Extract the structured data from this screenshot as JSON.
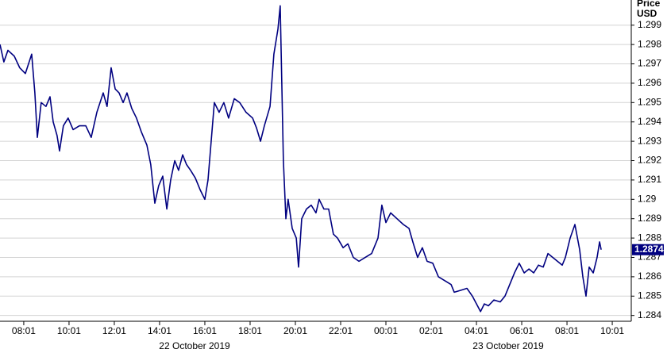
{
  "chart_data": {
    "type": "line",
    "ylabel": "Price",
    "yunit": "USD",
    "date_labels": [
      "22 October 2019",
      "23 October 2019"
    ],
    "last_value": 1.2874,
    "xlim": [
      -1.05,
      26.84
    ],
    "xticks": [
      {
        "value": 0,
        "label": "08:01"
      },
      {
        "value": 2,
        "label": "10:01"
      },
      {
        "value": 4,
        "label": "12:01"
      },
      {
        "value": 6,
        "label": "14:01"
      },
      {
        "value": 8,
        "label": "16:01"
      },
      {
        "value": 10,
        "label": "18:01"
      },
      {
        "value": 12,
        "label": "20:01"
      },
      {
        "value": 14,
        "label": "22:01"
      },
      {
        "value": 16,
        "label": "00:01"
      },
      {
        "value": 18,
        "label": "02:01"
      },
      {
        "value": 20,
        "label": "04:01"
      },
      {
        "value": 22,
        "label": "06:01"
      },
      {
        "value": 24,
        "label": "08:01"
      },
      {
        "value": 26,
        "label": "10:01"
      }
    ],
    "ylim": [
      1.2837,
      1.3003
    ],
    "yticks": [
      1.284,
      1.285,
      1.286,
      1.287,
      1.288,
      1.289,
      1.29,
      1.291,
      1.292,
      1.293,
      1.294,
      1.295,
      1.296,
      1.297,
      1.298,
      1.299
    ],
    "grid": true,
    "series": [
      {
        "color": "#000080",
        "x": [
          -1.05,
          -0.88,
          -0.7,
          -0.42,
          -0.18,
          0.07,
          0.35,
          0.49,
          0.6,
          0.77,
          0.98,
          1.16,
          1.3,
          1.47,
          1.58,
          1.75,
          1.96,
          2.18,
          2.46,
          2.74,
          2.98,
          3.23,
          3.51,
          3.68,
          3.86,
          4.04,
          4.21,
          4.39,
          4.56,
          4.77,
          4.98,
          5.19,
          5.44,
          5.61,
          5.79,
          5.96,
          6.14,
          6.32,
          6.49,
          6.67,
          6.84,
          7.02,
          7.19,
          7.37,
          7.58,
          7.79,
          8.0,
          8.14,
          8.28,
          8.42,
          8.63,
          8.84,
          9.05,
          9.3,
          9.54,
          9.82,
          10.11,
          10.28,
          10.46,
          10.63,
          10.88,
          11.05,
          11.23,
          11.33,
          11.4,
          11.47,
          11.58,
          11.68,
          11.86,
          12.04,
          12.14,
          12.28,
          12.49,
          12.7,
          12.91,
          13.05,
          13.26,
          13.47,
          13.68,
          13.86,
          14.11,
          14.32,
          14.56,
          14.81,
          15.09,
          15.37,
          15.65,
          15.82,
          16.0,
          16.21,
          16.49,
          16.77,
          17.02,
          17.19,
          17.4,
          17.61,
          17.82,
          18.07,
          18.32,
          18.6,
          18.88,
          19.02,
          19.3,
          19.58,
          19.82,
          20.0,
          20.18,
          20.35,
          20.53,
          20.77,
          21.05,
          21.26,
          21.47,
          21.68,
          21.89,
          22.11,
          22.32,
          22.53,
          22.74,
          22.95,
          23.16,
          23.37,
          23.58,
          23.79,
          23.93,
          24.14,
          24.35,
          24.56,
          24.7,
          24.84,
          24.98,
          25.16,
          25.33,
          25.44,
          25.51
        ],
        "values": [
          1.298,
          1.2971,
          1.2977,
          1.2974,
          1.2968,
          1.2965,
          1.2975,
          1.2955,
          1.2932,
          1.295,
          1.2948,
          1.2953,
          1.294,
          1.2933,
          1.2925,
          1.2938,
          1.2942,
          1.2936,
          1.2938,
          1.2938,
          1.2932,
          1.2945,
          1.2955,
          1.2948,
          1.2968,
          1.2957,
          1.2955,
          1.295,
          1.2955,
          1.2947,
          1.2942,
          1.2935,
          1.2928,
          1.2918,
          1.2898,
          1.2907,
          1.2912,
          1.2895,
          1.291,
          1.292,
          1.2915,
          1.2923,
          1.2918,
          1.2915,
          1.2911,
          1.2905,
          1.29,
          1.291,
          1.293,
          1.295,
          1.2945,
          1.295,
          1.2942,
          1.2952,
          1.295,
          1.2945,
          1.2942,
          1.2937,
          1.293,
          1.2938,
          1.2948,
          1.2975,
          1.2988,
          1.3,
          1.296,
          1.292,
          1.289,
          1.29,
          1.2885,
          1.288,
          1.2865,
          1.289,
          1.2895,
          1.2897,
          1.2893,
          1.29,
          1.2895,
          1.2895,
          1.2882,
          1.288,
          1.2875,
          1.2877,
          1.287,
          1.2868,
          1.287,
          1.2872,
          1.288,
          1.2897,
          1.2888,
          1.2893,
          1.289,
          1.2887,
          1.2885,
          1.2878,
          1.287,
          1.2875,
          1.2868,
          1.2867,
          1.286,
          1.2858,
          1.2856,
          1.2852,
          1.2853,
          1.2854,
          1.285,
          1.2846,
          1.2842,
          1.2846,
          1.2845,
          1.2848,
          1.2847,
          1.285,
          1.2856,
          1.2862,
          1.2867,
          1.2862,
          1.2864,
          1.2862,
          1.2866,
          1.2865,
          1.2872,
          1.287,
          1.2868,
          1.2866,
          1.287,
          1.288,
          1.2887,
          1.2874,
          1.286,
          1.285,
          1.2865,
          1.2862,
          1.287,
          1.2878,
          1.2874
        ]
      }
    ]
  }
}
